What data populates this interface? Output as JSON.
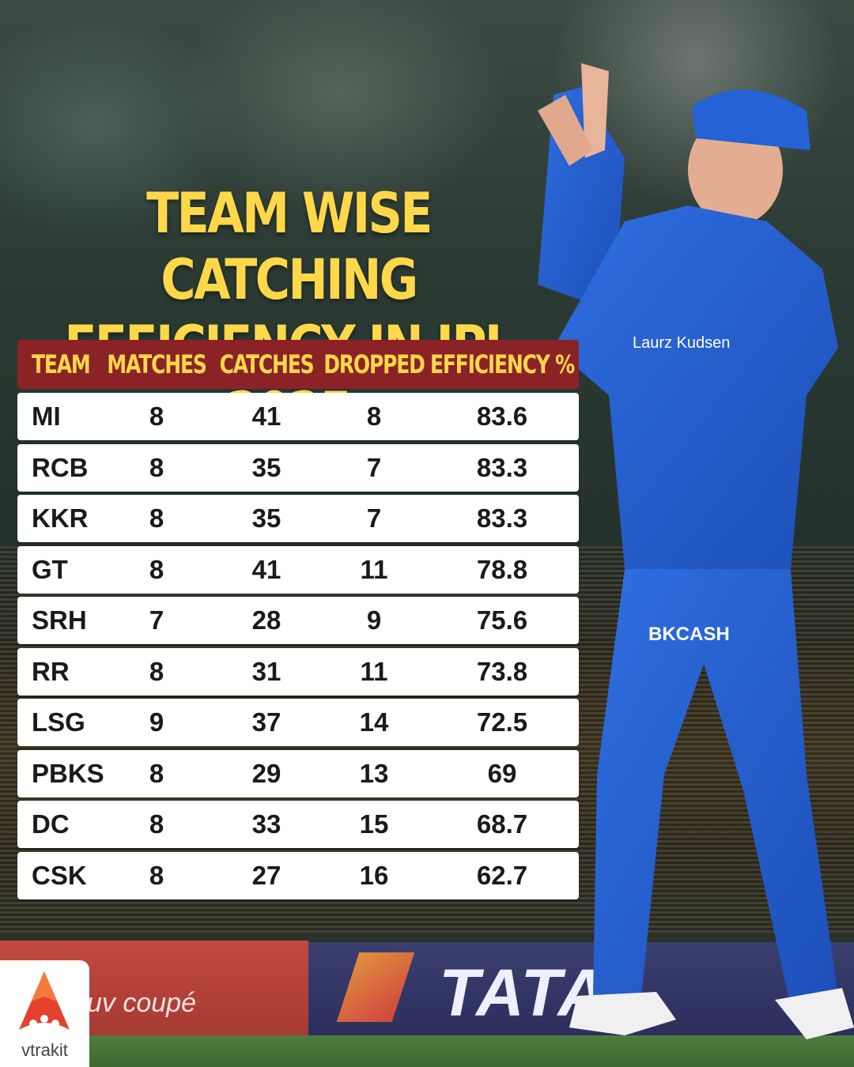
{
  "title": {
    "line1": "TEAM WISE CATCHING",
    "line2": "EFFICIENCY IN IPL 2025"
  },
  "colors": {
    "title": "#ffd84a",
    "header_bg": "#8b2326",
    "header_text": "#ffd84a",
    "row_bg": "#ffffff",
    "row_text": "#1a1a1a"
  },
  "chart_data": {
    "type": "table",
    "title": "TEAM WISE CATCHING EFFICIENCY IN IPL 2025",
    "columns": [
      "TEAM",
      "MATCHES",
      "CATCHES",
      "DROPPED",
      "EFFICIENCY %"
    ],
    "rows": [
      [
        "MI",
        "8",
        "41",
        "8",
        "83.6"
      ],
      [
        "RCB",
        "8",
        "35",
        "7",
        "83.3"
      ],
      [
        "KKR",
        "8",
        "35",
        "7",
        "83.3"
      ],
      [
        "GT",
        "8",
        "41",
        "11",
        "78.8"
      ],
      [
        "SRH",
        "7",
        "28",
        "9",
        "75.6"
      ],
      [
        "RR",
        "8",
        "31",
        "11",
        "73.8"
      ],
      [
        "LSG",
        "9",
        "37",
        "14",
        "72.5"
      ],
      [
        "PBKS",
        "8",
        "29",
        "13",
        "69"
      ],
      [
        "DC",
        "8",
        "33",
        "15",
        "68.7"
      ],
      [
        "CSK",
        "8",
        "27",
        "16",
        "62.7"
      ]
    ]
  },
  "background": {
    "board_left_text": "uv coupé",
    "board_right_text": "TATA",
    "jersey_sponsor": "BKCASH",
    "jersey_chest": "Laurz Kudsen"
  },
  "logo": {
    "name": "vtrakit",
    "icon": "vtrakit-logo-icon"
  }
}
